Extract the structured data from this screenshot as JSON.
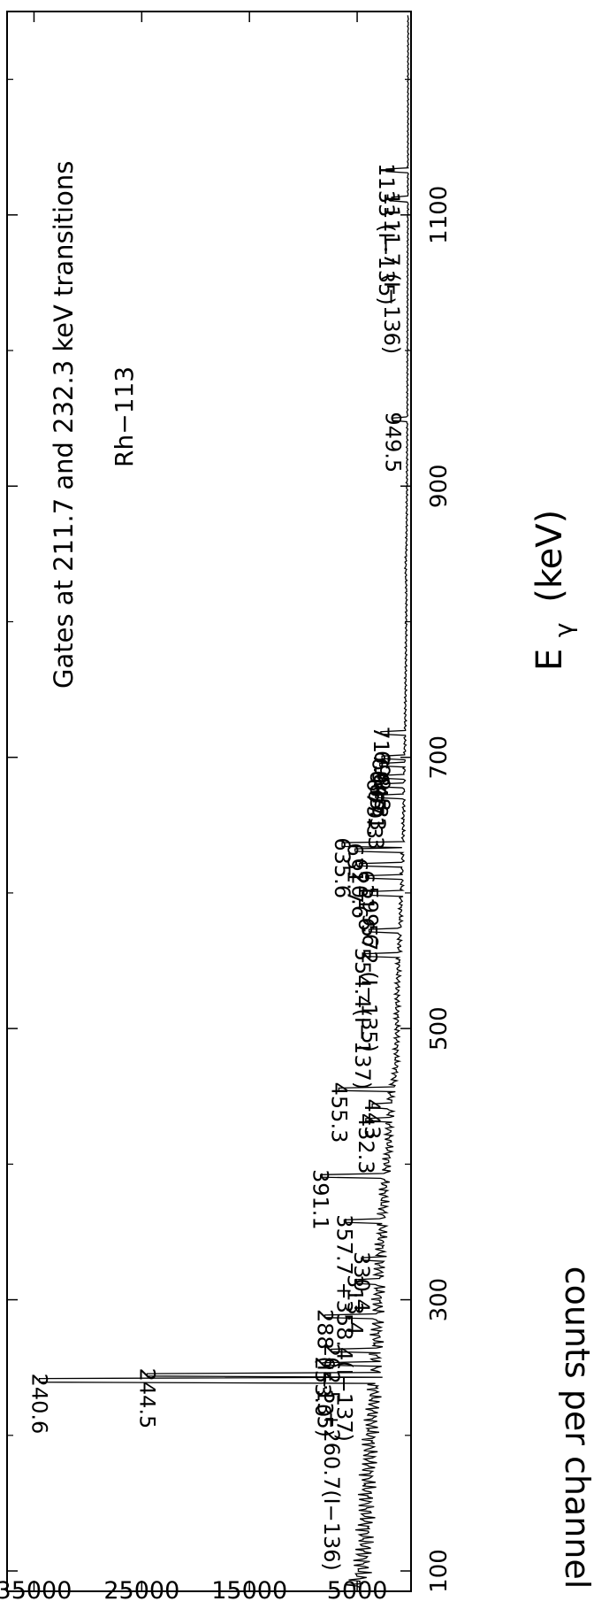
{
  "chart_data": {
    "type": "line",
    "title": "Gates at 211.7 and 232.3 keV transitions",
    "subtitle": "Rh−113",
    "xlabel": "Eγ (keV)",
    "xlabel_main": "E",
    "xlabel_sub": "γ",
    "xlabel_unit": "(keV)",
    "ylabel": "counts per channel",
    "xlim": [
      85,
      1250
    ],
    "ylim": [
      0,
      37500
    ],
    "x_ticks": [
      100,
      300,
      500,
      700,
      900,
      1100
    ],
    "x_minor_ticks": [
      200,
      400,
      600,
      800,
      1000,
      1200
    ],
    "y_ticks": [
      5000,
      15000,
      25000,
      35000
    ],
    "grid": false,
    "legend": "none",
    "peaks": [
      {
        "x": 240.6,
        "y": 34500,
        "label": "240.6"
      },
      {
        "x": 244.5,
        "y": 24500,
        "label": "244.5"
      },
      {
        "x": 253.0,
        "y": 8200,
        "label": "253.0"
      },
      {
        "x": 262.5,
        "y": 7400,
        "label": "262.5 +260.7(I−136)"
      },
      {
        "x": 288.0,
        "y": 8000,
        "label": "288 (I−135)"
      },
      {
        "x": 313.4,
        "y": 5200,
        "label": "313.4"
      },
      {
        "x": 330.4,
        "y": 4600,
        "label": "330.4"
      },
      {
        "x": 357.7,
        "y": 6200,
        "label": "357.7 +358.4(I−137)"
      },
      {
        "x": 391.1,
        "y": 8400,
        "label": "391.1"
      },
      {
        "x": 432.3,
        "y": 4200,
        "label": "432.3"
      },
      {
        "x": 443.0,
        "y": 3600,
        "label": "443"
      },
      {
        "x": 455.3,
        "y": 6700,
        "label": "455.3"
      },
      {
        "x": 554.4,
        "y": 4500,
        "label": "554.4(I−137)"
      },
      {
        "x": 572.0,
        "y": 3900,
        "label": "572 (I−135)"
      },
      {
        "x": 599.6,
        "y": 3800,
        "label": "599.6"
      },
      {
        "x": 611.6,
        "y": 4200,
        "label": "611.6"
      },
      {
        "x": 620.6,
        "y": 4800,
        "label": "620.6"
      },
      {
        "x": 631.7,
        "y": 5200,
        "label": "631.7"
      },
      {
        "x": 635.6,
        "y": 6400,
        "label": "635.6"
      },
      {
        "x": 671.3,
        "y": 3300,
        "label": "671.3"
      },
      {
        "x": 679.3,
        "y": 3400,
        "label": "679.3"
      },
      {
        "x": 685.3,
        "y": 3100,
        "label": "685.3"
      },
      {
        "x": 694.8,
        "y": 2900,
        "label": "694.8"
      },
      {
        "x": 699.8,
        "y": 2700,
        "label": "699.8"
      },
      {
        "x": 717.8,
        "y": 2800,
        "label": "717.8"
      },
      {
        "x": 949.5,
        "y": 1700,
        "label": "949.5"
      },
      {
        "x": 1111.7,
        "y": 1800,
        "label": "1111.7 (I−136)"
      },
      {
        "x": 1133.0,
        "y": 2300,
        "label": "1133 (I−135)"
      }
    ],
    "background": [
      [
        88,
        5200
      ],
      [
        100,
        4600
      ],
      [
        120,
        4300
      ],
      [
        140,
        4200
      ],
      [
        160,
        4100
      ],
      [
        180,
        3900
      ],
      [
        200,
        3800
      ],
      [
        215,
        3600
      ],
      [
        225,
        3500
      ],
      [
        235,
        3400
      ],
      [
        250,
        3300
      ],
      [
        270,
        3200
      ],
      [
        290,
        3100
      ],
      [
        310,
        3000
      ],
      [
        330,
        2900
      ],
      [
        350,
        2700
      ],
      [
        370,
        2600
      ],
      [
        390,
        2400
      ],
      [
        410,
        2100
      ],
      [
        430,
        2000
      ],
      [
        450,
        1900
      ],
      [
        470,
        1400
      ],
      [
        500,
        1300
      ],
      [
        520,
        1300
      ],
      [
        540,
        1200
      ],
      [
        560,
        1100
      ],
      [
        580,
        1000
      ],
      [
        600,
        900
      ],
      [
        620,
        800
      ],
      [
        640,
        750
      ],
      [
        660,
        700
      ],
      [
        680,
        650
      ],
      [
        700,
        600
      ],
      [
        720,
        550
      ],
      [
        740,
        520
      ],
      [
        760,
        500
      ],
      [
        780,
        470
      ],
      [
        800,
        450
      ],
      [
        820,
        430
      ],
      [
        840,
        500
      ],
      [
        860,
        420
      ],
      [
        880,
        400
      ],
      [
        900,
        380
      ],
      [
        920,
        370
      ],
      [
        950,
        350
      ],
      [
        980,
        340
      ],
      [
        1000,
        330
      ],
      [
        1050,
        320
      ],
      [
        1100,
        300
      ],
      [
        1150,
        290
      ],
      [
        1200,
        280
      ],
      [
        1250,
        270
      ]
    ]
  }
}
